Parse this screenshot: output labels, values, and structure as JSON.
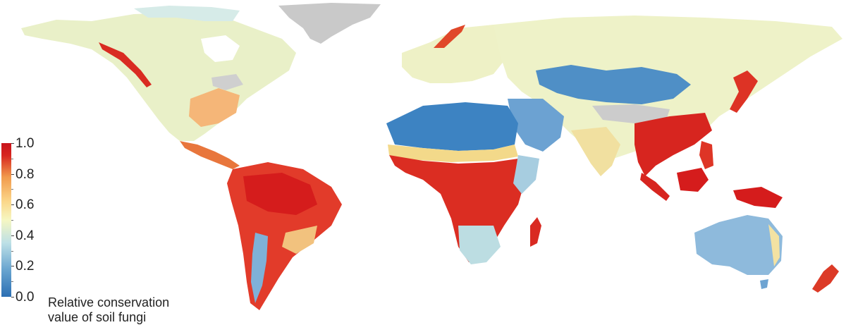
{
  "legend": {
    "title_line1": "Relative conservation",
    "title_line2": "value of soil fungi",
    "ticks": [
      {
        "value": 1.0,
        "label": "1.0"
      },
      {
        "value": 0.8,
        "label": "0.8"
      },
      {
        "value": 0.6,
        "label": "0.6"
      },
      {
        "value": 0.4,
        "label": "0.4"
      },
      {
        "value": 0.2,
        "label": "0.2"
      },
      {
        "value": 0.0,
        "label": "0.0"
      }
    ],
    "colors": {
      "low": "#2b6fb3",
      "mid": "#f6f7c2",
      "high": "#d7251f",
      "no_data": "#cccccc"
    }
  }
}
